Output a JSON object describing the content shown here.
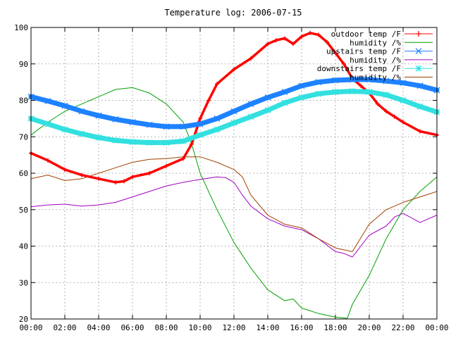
{
  "chart_data": {
    "type": "line",
    "title": "Temperature log: 2006-07-15",
    "xlabel": "",
    "ylabel": "",
    "xlim": [
      0,
      24
    ],
    "ylim": [
      20,
      100
    ],
    "grid": true,
    "legend_position": "top-right",
    "x_ticks": [
      {
        "value": 0,
        "label": "00:00"
      },
      {
        "value": 2,
        "label": "02:00"
      },
      {
        "value": 4,
        "label": "04:00"
      },
      {
        "value": 6,
        "label": "06:00"
      },
      {
        "value": 8,
        "label": "08:00"
      },
      {
        "value": 10,
        "label": "10:00"
      },
      {
        "value": 12,
        "label": "12:00"
      },
      {
        "value": 14,
        "label": "14:00"
      },
      {
        "value": 16,
        "label": "16:00"
      },
      {
        "value": 18,
        "label": "18:00"
      },
      {
        "value": 20,
        "label": "20:00"
      },
      {
        "value": 22,
        "label": "22:00"
      },
      {
        "value": 24,
        "label": "00:00"
      }
    ],
    "y_ticks": [
      {
        "value": 20,
        "label": "20"
      },
      {
        "value": 30,
        "label": "30"
      },
      {
        "value": 40,
        "label": "40"
      },
      {
        "value": 50,
        "label": "50"
      },
      {
        "value": 60,
        "label": "60"
      },
      {
        "value": 70,
        "label": "70"
      },
      {
        "value": 80,
        "label": "80"
      },
      {
        "value": 90,
        "label": "90"
      },
      {
        "value": 100,
        "label": "100"
      }
    ],
    "series": [
      {
        "name": "outdoor temp /F",
        "color": "#ff0000",
        "marker": "plus",
        "width": 3.5,
        "points": [
          [
            0,
            65.5
          ],
          [
            1,
            63.5
          ],
          [
            2,
            61
          ],
          [
            3,
            59.5
          ],
          [
            4,
            58.5
          ],
          [
            5,
            57.5
          ],
          [
            5.5,
            57.8
          ],
          [
            6,
            59
          ],
          [
            7,
            60
          ],
          [
            8,
            62
          ],
          [
            9,
            64
          ],
          [
            9.5,
            68
          ],
          [
            10,
            75
          ],
          [
            10.5,
            80
          ],
          [
            11,
            84.5
          ],
          [
            12,
            88.5
          ],
          [
            13,
            91.5
          ],
          [
            14,
            95.5
          ],
          [
            14.5,
            96.5
          ],
          [
            15,
            97
          ],
          [
            15.5,
            95.5
          ],
          [
            16,
            97.5
          ],
          [
            16.5,
            98.5
          ],
          [
            17,
            98
          ],
          [
            17.5,
            96
          ],
          [
            18,
            93
          ],
          [
            18.5,
            90
          ],
          [
            19,
            86
          ],
          [
            19.5,
            84
          ],
          [
            20,
            82
          ],
          [
            20.5,
            79
          ],
          [
            21,
            77
          ],
          [
            21.5,
            75.5
          ],
          [
            22,
            74
          ],
          [
            23,
            71.5
          ],
          [
            24,
            70.5
          ]
        ]
      },
      {
        "name": "humidity /%",
        "color": "#00a000",
        "marker": "none",
        "width": 1,
        "points": [
          [
            0,
            70.5
          ],
          [
            1,
            74
          ],
          [
            2,
            77
          ],
          [
            3,
            79
          ],
          [
            4,
            81
          ],
          [
            5,
            83
          ],
          [
            6,
            83.5
          ],
          [
            7,
            82
          ],
          [
            8,
            79
          ],
          [
            9,
            74
          ],
          [
            9.5,
            68
          ],
          [
            10,
            60
          ],
          [
            11,
            50
          ],
          [
            12,
            41
          ],
          [
            13,
            34
          ],
          [
            14,
            28
          ],
          [
            15,
            25
          ],
          [
            15.5,
            25.5
          ],
          [
            16,
            23
          ],
          [
            17,
            21.5
          ],
          [
            18,
            20.5
          ],
          [
            18.7,
            20.2
          ],
          [
            19,
            24
          ],
          [
            20,
            32
          ],
          [
            21,
            42
          ],
          [
            22,
            50
          ],
          [
            23,
            55
          ],
          [
            24,
            59
          ]
        ]
      },
      {
        "name": "upstairs temp /F",
        "color": "#1e82ff",
        "marker": "cross",
        "width": 7,
        "points": [
          [
            0,
            81
          ],
          [
            1,
            79.8
          ],
          [
            2,
            78.5
          ],
          [
            3,
            77
          ],
          [
            4,
            75.8
          ],
          [
            5,
            74.8
          ],
          [
            6,
            74
          ],
          [
            7,
            73.3
          ],
          [
            8,
            72.8
          ],
          [
            9,
            72.8
          ],
          [
            10,
            73.5
          ],
          [
            11,
            75
          ],
          [
            12,
            77
          ],
          [
            13,
            79
          ],
          [
            14,
            80.8
          ],
          [
            15,
            82.3
          ],
          [
            16,
            84
          ],
          [
            17,
            85
          ],
          [
            18,
            85.5
          ],
          [
            19,
            85.7
          ],
          [
            20,
            85.7
          ],
          [
            21,
            85.3
          ],
          [
            22,
            84.8
          ],
          [
            23,
            84
          ],
          [
            24,
            82.8
          ]
        ]
      },
      {
        "name": "humidity /%",
        "color": "#a000c0",
        "marker": "none",
        "width": 1,
        "points": [
          [
            0,
            50.8
          ],
          [
            1,
            51.3
          ],
          [
            2,
            51.5
          ],
          [
            3,
            51
          ],
          [
            4,
            51.3
          ],
          [
            5,
            52
          ],
          [
            6,
            53.5
          ],
          [
            7,
            55
          ],
          [
            8,
            56.5
          ],
          [
            9,
            57.5
          ],
          [
            10,
            58.3
          ],
          [
            11,
            59
          ],
          [
            11.5,
            58.8
          ],
          [
            12,
            57.5
          ],
          [
            12.5,
            54
          ],
          [
            13,
            51
          ],
          [
            14,
            47.5
          ],
          [
            15,
            45.5
          ],
          [
            16,
            44.5
          ],
          [
            17,
            42
          ],
          [
            18,
            38.5
          ],
          [
            18.5,
            38
          ],
          [
            19,
            37
          ],
          [
            19.5,
            40
          ],
          [
            20,
            43
          ],
          [
            21,
            45.5
          ],
          [
            21.5,
            48
          ],
          [
            22,
            49
          ],
          [
            23,
            46.5
          ],
          [
            24,
            48.5
          ]
        ]
      },
      {
        "name": "downstairs temp /F",
        "color": "#33e0e0",
        "marker": "star",
        "width": 7,
        "points": [
          [
            0,
            75
          ],
          [
            1,
            73.5
          ],
          [
            2,
            72
          ],
          [
            3,
            70.8
          ],
          [
            4,
            69.8
          ],
          [
            5,
            69
          ],
          [
            6,
            68.6
          ],
          [
            7,
            68.4
          ],
          [
            8,
            68.4
          ],
          [
            9,
            68.8
          ],
          [
            10,
            70.5
          ],
          [
            11,
            72
          ],
          [
            12,
            73.8
          ],
          [
            13,
            75.5
          ],
          [
            14,
            77.3
          ],
          [
            15,
            79.3
          ],
          [
            16,
            80.8
          ],
          [
            17,
            81.8
          ],
          [
            18,
            82.3
          ],
          [
            19,
            82.5
          ],
          [
            20,
            82.3
          ],
          [
            21,
            81.5
          ],
          [
            22,
            80
          ],
          [
            23,
            78.3
          ],
          [
            24,
            76.8
          ]
        ]
      },
      {
        "name": "humidity /%",
        "color": "#a04000",
        "marker": "none",
        "width": 1,
        "points": [
          [
            0,
            58.5
          ],
          [
            1,
            59.5
          ],
          [
            2,
            58
          ],
          [
            3,
            58.5
          ],
          [
            4,
            60
          ],
          [
            5,
            61.5
          ],
          [
            6,
            63
          ],
          [
            7,
            63.8
          ],
          [
            8,
            64
          ],
          [
            9,
            64.5
          ],
          [
            10,
            64.5
          ],
          [
            11,
            63
          ],
          [
            12,
            61
          ],
          [
            12.5,
            59
          ],
          [
            13,
            54
          ],
          [
            14,
            48.5
          ],
          [
            15,
            46
          ],
          [
            16,
            45
          ],
          [
            17,
            42
          ],
          [
            18,
            39.5
          ],
          [
            18.5,
            39
          ],
          [
            19,
            38.5
          ],
          [
            20,
            46
          ],
          [
            21,
            50
          ],
          [
            22,
            52
          ],
          [
            23,
            53.5
          ],
          [
            24,
            55
          ]
        ]
      }
    ]
  }
}
